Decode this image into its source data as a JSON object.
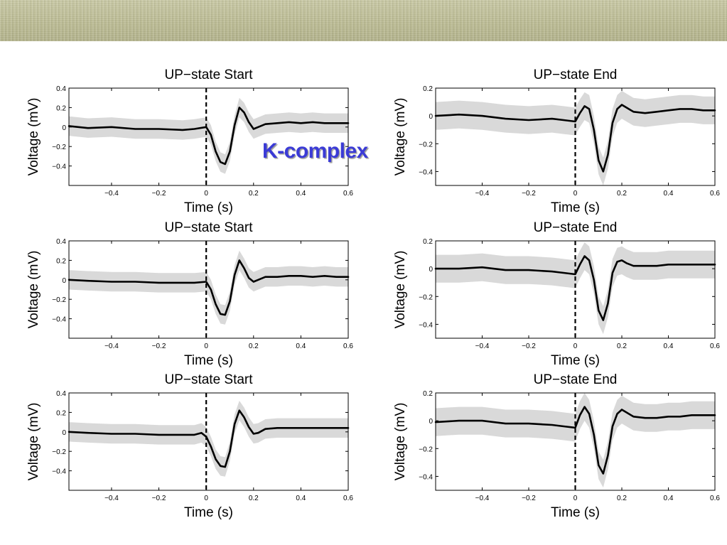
{
  "slide": {
    "annotation": "K-complex",
    "colors": {
      "annotation": "#3b3bd6",
      "banner": "#c2c29c",
      "mean_line": "#000000",
      "ci_band": "#d9d9d9"
    }
  },
  "chart_data": [
    {
      "type": "line",
      "title": "UP−state Start",
      "xlabel": "Time (s)",
      "ylabel": "Voltage (mV)",
      "xlim": [
        -0.58,
        0.6
      ],
      "ylim": [
        -0.6,
        0.4
      ],
      "xticks": [
        -0.4,
        -0.2,
        0,
        0.2,
        0.4,
        0.6
      ],
      "xtick_labels": [
        "−0.4",
        "−0.2",
        "0",
        "0.2",
        "0.4",
        "0.6"
      ],
      "yticks": [
        0.4,
        0.2,
        0,
        -0.2,
        -0.4
      ],
      "ytick_labels": [
        "0.4",
        "0.2",
        "0",
        "−0.2",
        "−0.4"
      ],
      "vline_x": 0,
      "band_width": 0.1,
      "series": [
        {
          "x": [
            -0.58,
            -0.5,
            -0.4,
            -0.3,
            -0.2,
            -0.1,
            -0.05,
            0,
            0.02,
            0.04,
            0.06,
            0.08,
            0.1,
            0.12,
            0.14,
            0.16,
            0.18,
            0.2,
            0.22,
            0.25,
            0.3,
            0.35,
            0.4,
            0.45,
            0.5,
            0.55,
            0.6
          ],
          "y": [
            0.01,
            -0.01,
            0.0,
            -0.02,
            -0.02,
            -0.03,
            -0.02,
            0.0,
            -0.08,
            -0.25,
            -0.36,
            -0.38,
            -0.25,
            0.02,
            0.2,
            0.15,
            0.05,
            -0.02,
            0.0,
            0.03,
            0.04,
            0.05,
            0.04,
            0.05,
            0.04,
            0.04,
            0.04
          ]
        }
      ]
    },
    {
      "type": "line",
      "title": "UP−state End",
      "xlabel": "Time (s)",
      "ylabel": "Voltage (mV)",
      "xlim": [
        -0.6,
        0.6
      ],
      "ylim": [
        -0.5,
        0.2
      ],
      "xticks": [
        -0.4,
        -0.2,
        0,
        0.2,
        0.4,
        0.6
      ],
      "xtick_labels": [
        "−0.4",
        "−0.2",
        "0",
        "0.2",
        "0.4",
        "0.6"
      ],
      "yticks": [
        0.2,
        0,
        -0.2,
        -0.4
      ],
      "ytick_labels": [
        "0.2",
        "0",
        "−0.2",
        "−0.4"
      ],
      "vline_x": 0,
      "band_width": 0.1,
      "series": [
        {
          "x": [
            -0.6,
            -0.5,
            -0.4,
            -0.3,
            -0.2,
            -0.1,
            -0.05,
            0,
            0.02,
            0.04,
            0.06,
            0.08,
            0.1,
            0.12,
            0.14,
            0.16,
            0.18,
            0.2,
            0.22,
            0.25,
            0.3,
            0.35,
            0.4,
            0.45,
            0.5,
            0.55,
            0.6
          ],
          "y": [
            0.0,
            0.01,
            0.0,
            -0.02,
            -0.03,
            -0.02,
            -0.03,
            -0.04,
            0.02,
            0.07,
            0.05,
            -0.1,
            -0.32,
            -0.4,
            -0.28,
            -0.05,
            0.05,
            0.08,
            0.06,
            0.03,
            0.02,
            0.03,
            0.04,
            0.05,
            0.05,
            0.04,
            0.04
          ]
        }
      ]
    },
    {
      "type": "line",
      "title": "UP−state Start",
      "xlabel": "Time (s)",
      "ylabel": "Voltage (mV)",
      "xlim": [
        -0.58,
        0.6
      ],
      "ylim": [
        -0.6,
        0.4
      ],
      "xticks": [
        -0.4,
        -0.2,
        0,
        0.2,
        0.4,
        0.6
      ],
      "xtick_labels": [
        "−0.4",
        "−0.2",
        "0",
        "0.2",
        "0.4",
        "0.6"
      ],
      "yticks": [
        0.4,
        0.2,
        0,
        -0.2,
        -0.4
      ],
      "ytick_labels": [
        "0.4",
        "0.2",
        "0",
        "−0.2",
        "−0.4"
      ],
      "vline_x": 0,
      "band_width": 0.1,
      "series": [
        {
          "x": [
            -0.58,
            -0.5,
            -0.4,
            -0.3,
            -0.2,
            -0.1,
            -0.05,
            0,
            0.02,
            0.04,
            0.06,
            0.08,
            0.1,
            0.12,
            0.14,
            0.16,
            0.18,
            0.2,
            0.22,
            0.25,
            0.3,
            0.35,
            0.4,
            0.45,
            0.5,
            0.55,
            0.6
          ],
          "y": [
            0.0,
            -0.01,
            -0.02,
            -0.02,
            -0.03,
            -0.03,
            -0.03,
            -0.02,
            -0.1,
            -0.25,
            -0.35,
            -0.36,
            -0.22,
            0.05,
            0.2,
            0.12,
            0.02,
            -0.02,
            0.0,
            0.03,
            0.03,
            0.04,
            0.04,
            0.03,
            0.04,
            0.03,
            0.03
          ]
        }
      ]
    },
    {
      "type": "line",
      "title": "UP−state End",
      "xlabel": "Time (s)",
      "ylabel": "Voltage (mV)",
      "xlim": [
        -0.6,
        0.6
      ],
      "ylim": [
        -0.5,
        0.2
      ],
      "xticks": [
        -0.4,
        -0.2,
        0,
        0.2,
        0.4,
        0.6
      ],
      "xtick_labels": [
        "−0.4",
        "−0.2",
        "0",
        "0.2",
        "0.4",
        "0.6"
      ],
      "yticks": [
        0.2,
        0,
        -0.2,
        -0.4
      ],
      "ytick_labels": [
        "0.2",
        "0",
        "−0.2",
        "−0.4"
      ],
      "vline_x": 0,
      "band_width": 0.1,
      "series": [
        {
          "x": [
            -0.6,
            -0.5,
            -0.4,
            -0.3,
            -0.2,
            -0.1,
            -0.05,
            0,
            0.02,
            0.04,
            0.06,
            0.08,
            0.1,
            0.12,
            0.14,
            0.16,
            0.18,
            0.2,
            0.22,
            0.25,
            0.3,
            0.35,
            0.4,
            0.45,
            0.5,
            0.55,
            0.6
          ],
          "y": [
            0.0,
            0.0,
            0.01,
            -0.01,
            -0.01,
            -0.02,
            -0.03,
            -0.04,
            0.03,
            0.09,
            0.06,
            -0.08,
            -0.3,
            -0.37,
            -0.25,
            -0.03,
            0.05,
            0.06,
            0.04,
            0.02,
            0.02,
            0.02,
            0.03,
            0.03,
            0.03,
            0.03,
            0.03
          ]
        }
      ]
    },
    {
      "type": "line",
      "title": "UP−state Start",
      "xlabel": "Time (s)",
      "ylabel": "Voltage (mV)",
      "xlim": [
        -0.58,
        0.6
      ],
      "ylim": [
        -0.6,
        0.4
      ],
      "xticks": [
        -0.4,
        -0.2,
        0,
        0.2,
        0.4,
        0.6
      ],
      "xtick_labels": [
        "−0.4",
        "−0.2",
        "0",
        "0.2",
        "0.4",
        "0.6"
      ],
      "yticks": [
        0.4,
        0.2,
        0,
        -0.2,
        -0.4
      ],
      "ytick_labels": [
        "0.4",
        "0.2",
        "0",
        "−0.2",
        "−0.4"
      ],
      "vline_x": 0,
      "band_width": 0.1,
      "series": [
        {
          "x": [
            -0.58,
            -0.5,
            -0.4,
            -0.3,
            -0.2,
            -0.1,
            -0.05,
            -0.02,
            0,
            0.02,
            0.04,
            0.06,
            0.08,
            0.1,
            0.12,
            0.14,
            0.16,
            0.18,
            0.2,
            0.22,
            0.25,
            0.3,
            0.35,
            0.4,
            0.45,
            0.5,
            0.55,
            0.6
          ],
          "y": [
            0.0,
            -0.01,
            -0.02,
            -0.02,
            -0.03,
            -0.03,
            -0.03,
            -0.01,
            -0.05,
            -0.15,
            -0.28,
            -0.35,
            -0.36,
            -0.2,
            0.08,
            0.22,
            0.15,
            0.05,
            -0.02,
            -0.01,
            0.03,
            0.04,
            0.04,
            0.04,
            0.04,
            0.04,
            0.04,
            0.04
          ]
        }
      ]
    },
    {
      "type": "line",
      "title": "UP−state End",
      "xlabel": "Time (s)",
      "ylabel": "Voltage (mV)",
      "xlim": [
        -0.6,
        0.6
      ],
      "ylim": [
        -0.5,
        0.2
      ],
      "xticks": [
        -0.4,
        -0.2,
        0,
        0.2,
        0.4,
        0.6
      ],
      "xtick_labels": [
        "−0.4",
        "−0.2",
        "0",
        "0.2",
        "0.4",
        "0.6"
      ],
      "yticks": [
        0.2,
        0,
        -0.2,
        -0.4
      ],
      "ytick_labels": [
        "0.2",
        "0",
        "−0.2",
        "−0.4"
      ],
      "vline_x": 0,
      "band_width": 0.1,
      "series": [
        {
          "x": [
            -0.6,
            -0.5,
            -0.4,
            -0.3,
            -0.2,
            -0.1,
            -0.05,
            0,
            0.02,
            0.04,
            0.06,
            0.08,
            0.1,
            0.12,
            0.14,
            0.16,
            0.18,
            0.2,
            0.22,
            0.25,
            0.3,
            0.35,
            0.4,
            0.45,
            0.5,
            0.55,
            0.6
          ],
          "y": [
            -0.01,
            0.0,
            0.0,
            -0.02,
            -0.02,
            -0.03,
            -0.04,
            -0.05,
            0.04,
            0.1,
            0.05,
            -0.1,
            -0.32,
            -0.38,
            -0.25,
            -0.04,
            0.05,
            0.08,
            0.06,
            0.03,
            0.02,
            0.02,
            0.03,
            0.03,
            0.04,
            0.04,
            0.04
          ]
        }
      ]
    }
  ]
}
